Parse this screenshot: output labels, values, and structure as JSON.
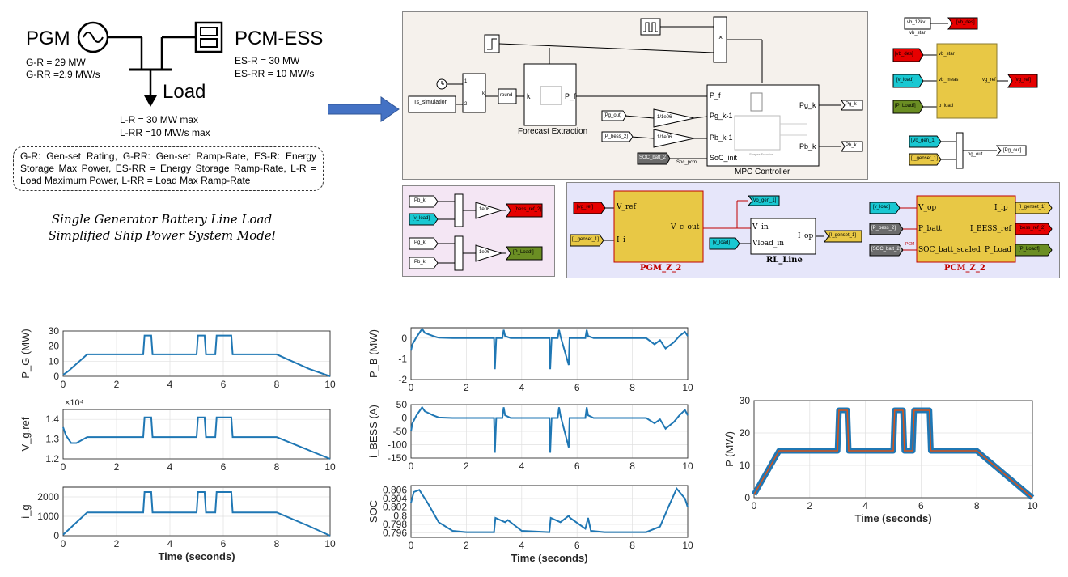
{
  "ship_model": {
    "pgm_label": "PGM",
    "pcm_label": "PCM-ESS",
    "load_label": "Load",
    "pgm_specs": [
      "G-R = 29 MW",
      "G-RR =2.9 MW/s"
    ],
    "pcm_specs": [
      "ES-R = 30 MW",
      "ES-RR = 10 MW/s"
    ],
    "load_specs": [
      "L-R = 30 MW max",
      "L-RR =10 MW/s max"
    ],
    "legend_text": "G-R: Gen-set Rating, G-RR: Gen-set Ramp-Rate, ES-R: Energy Storage Max Power, ES-RR = Energy Storage Ramp-Rate, L-R = Load Maximum Power, L-RR = Load Max Ramp-Rate",
    "caption_line1": "Single Generator Battery Line Load",
    "caption_line2": "Simplified Ship Power System Model"
  },
  "mpc_panel": {
    "ts_block": "Ts_simulation",
    "round_block": "round",
    "k_label": "k",
    "forecast_block": "Forecast Extraction",
    "forecast_port_k": "k",
    "forecast_port_pf": "P_f",
    "mpc_block": "MPC Controller",
    "mpc_in_ports": [
      "P_f",
      "Pg_k-1",
      "Pb_k-1",
      "SoC_init"
    ],
    "mpc_out_ports": [
      "Pg_k",
      "Pb_k"
    ],
    "gain1": "1/1e06",
    "gain2": "1/1e06",
    "from_pg_out": "[Pg_out]",
    "from_p_bess": "[P_bess_2]",
    "from_soc": "SOC_batt_2",
    "soc_signal": "Soc_pcm",
    "goto_pg_k": "Pg_k",
    "goto_pb_k": "Pb_k",
    "mux_ports": [
      "1",
      "2"
    ],
    "mpc_sub": "Shapes Function"
  },
  "right_panel": {
    "vb_12kv": "vb_12kv",
    "vb_star_label": "vb_star",
    "goto_vb_des": "[vb_des]",
    "from_vb_des": "[vb_des]",
    "from_v_load": "[v_load]",
    "from_p_load": "[P_Loadf]",
    "ports_in": [
      "vb_star",
      "vb_meas",
      "p_load"
    ],
    "port_out": "vg_ref",
    "goto_vg_ref": "[vg_ref]",
    "from_vo_gen": "[Vo_gen_1]",
    "from_i_genset": "[I_genset_1]",
    "pg_out_label": "pg_out",
    "goto_pg_out": "[Pg_out]"
  },
  "pink_panel": {
    "from_pb_k": "Pb_k",
    "from_v_load": "[v_load]",
    "gain_a": "1e06",
    "goto_bess_ref": "[bess_ref_2]",
    "from_pg_k": "Pg_k",
    "from_pb_k2": "Pb_k",
    "gain_b": "1e06",
    "goto_p_load": "[P_Loadf]"
  },
  "blue_panel": {
    "from_vg_ref": "[vg_ref]",
    "from_i_genset": "[I_genset_1]",
    "pgm_ports_in": [
      "V_ref",
      "I_i"
    ],
    "pgm_port_out": "V_c_out",
    "pgm_name": "PGM_Z_2",
    "goto_vo_gen": "[Vo_gen_1]",
    "from_v_load_line": "[v_load]",
    "rl_ports_in": [
      "V_in",
      "Vload_in"
    ],
    "rl_port_out": "I_op",
    "rl_name": "RL_Line",
    "goto_i_genset": "[I_genset_1]",
    "from_v_load_pcm": "[v_load]",
    "from_p_bess": "[P_bess_2]",
    "from_soc_batt": "[SOC_batt_2]",
    "pcm_ports_left": [
      "V_op",
      "P_batt",
      "SOC_batt_scaled"
    ],
    "pcm_ports_right": [
      "I_ip",
      "I_BESS_ref",
      "P_Load"
    ],
    "pcm_name": "PCM_Z_2",
    "pcm_tag": "PCM",
    "from_i_genset_r": "[I_genset_1]",
    "from_bess_ref": "[bess_ref_2]",
    "from_p_loadf": "[P_Loadf]"
  },
  "colors": {
    "simulink_yellow": "#e8c845",
    "goto_red": "#e60000",
    "from_cyan": "#19c8d2",
    "from_green": "#6b8e23",
    "from_gray": "#6b6b6b",
    "mpc_panel_bg": "#f5f1ec",
    "pink_panel_bg": "#f4e6f4",
    "blue_panel_bg": "#e6e6fa",
    "arrow_blue": "#4472c4",
    "line_blue": "#1f77b4",
    "line_orange": "#d95319"
  },
  "chart_data": [
    {
      "type": "line",
      "ylabel": "P_G (MW)",
      "ylim": [
        0,
        30
      ],
      "yticks": [
        "0",
        "10",
        "20",
        "30"
      ],
      "xlim": [
        0,
        10
      ],
      "xticks": [
        "0",
        "2",
        "4",
        "6",
        "8",
        "10"
      ],
      "x": [
        0,
        0.2,
        0.9,
        3.0,
        3.05,
        3.3,
        3.35,
        5.0,
        5.05,
        5.3,
        5.35,
        5.7,
        5.75,
        6.3,
        6.35,
        8.0,
        9.2,
        10.0
      ],
      "values": [
        1,
        3.5,
        14.5,
        14.5,
        27,
        27,
        14.5,
        14.5,
        27,
        27,
        14.5,
        14.5,
        27,
        27,
        14.5,
        14.5,
        5,
        0
      ]
    },
    {
      "type": "line",
      "ylabel": "V_g,ref",
      "scale": "×10⁴",
      "ylim": [
        1.2,
        1.45
      ],
      "yticks": [
        "1.2",
        "1.3",
        "1.4"
      ],
      "xlim": [
        0,
        10
      ],
      "xticks": [
        "0",
        "2",
        "4",
        "6",
        "8",
        "10"
      ],
      "x": [
        0,
        0.1,
        0.3,
        0.5,
        0.9,
        3.0,
        3.05,
        3.3,
        3.35,
        5.0,
        5.05,
        5.3,
        5.35,
        5.7,
        5.75,
        6.3,
        6.35,
        8.0,
        10.0
      ],
      "values": [
        1.36,
        1.32,
        1.28,
        1.28,
        1.31,
        1.31,
        1.41,
        1.41,
        1.31,
        1.31,
        1.41,
        1.41,
        1.31,
        1.31,
        1.41,
        1.41,
        1.31,
        1.31,
        1.2
      ]
    },
    {
      "type": "line",
      "ylabel": "i_g",
      "ylim": [
        0,
        2500
      ],
      "yticks": [
        "0",
        "1000",
        "2000"
      ],
      "xlim": [
        0,
        10
      ],
      "xticks": [
        "0",
        "2",
        "4",
        "6",
        "8",
        "10"
      ],
      "xlabel": "Time (seconds)",
      "x": [
        0,
        0.2,
        0.9,
        3.0,
        3.05,
        3.3,
        3.35,
        5.0,
        5.05,
        5.3,
        5.35,
        5.7,
        5.75,
        6.3,
        6.35,
        8.0,
        9.2,
        10.0
      ],
      "values": [
        50,
        300,
        1200,
        1200,
        2250,
        2250,
        1200,
        1200,
        2250,
        2250,
        1200,
        1200,
        2250,
        2250,
        1200,
        1200,
        500,
        0
      ]
    },
    {
      "type": "line",
      "ylabel": "P_B (MW)",
      "ylim": [
        -2,
        0.5
      ],
      "yticks": [
        "-2",
        "-1",
        "0"
      ],
      "xlim": [
        0,
        10
      ],
      "xticks": [
        "0",
        "2",
        "4",
        "6",
        "8",
        "10"
      ],
      "x": [
        0,
        0.05,
        0.2,
        0.4,
        0.5,
        0.6,
        0.8,
        1.0,
        1.5,
        3.0,
        3.03,
        3.08,
        3.3,
        3.35,
        3.4,
        3.6,
        5.0,
        5.03,
        5.08,
        5.3,
        5.35,
        5.4,
        5.7,
        5.73,
        5.78,
        6.3,
        6.35,
        6.4,
        6.6,
        8.5,
        8.8,
        9.0,
        9.2,
        9.5,
        9.7,
        9.9,
        10.0
      ],
      "values": [
        -0.6,
        -0.3,
        0.05,
        0.45,
        0.25,
        0.2,
        0.1,
        0.02,
        0,
        0,
        -1.5,
        0,
        0,
        0.4,
        0.1,
        0,
        0,
        -1.5,
        0,
        0,
        0.4,
        0.1,
        -1.3,
        0,
        0,
        0,
        0.4,
        0.1,
        0,
        0,
        -0.3,
        -0.1,
        -0.5,
        -0.2,
        0.1,
        0.3,
        0.1
      ]
    },
    {
      "type": "line",
      "ylabel": "i_BESS (A)",
      "ylim": [
        -150,
        50
      ],
      "yticks": [
        "-150",
        "-100",
        "-50",
        "0",
        "50"
      ],
      "xlim": [
        0,
        10
      ],
      "xticks": [
        "0",
        "2",
        "4",
        "6",
        "8",
        "10"
      ],
      "x": [
        0,
        0.05,
        0.2,
        0.4,
        0.5,
        0.6,
        0.8,
        1.0,
        1.5,
        3.0,
        3.03,
        3.08,
        3.3,
        3.35,
        3.4,
        3.6,
        5.0,
        5.03,
        5.08,
        5.3,
        5.35,
        5.4,
        5.7,
        5.73,
        5.78,
        6.3,
        6.35,
        6.4,
        6.6,
        8.5,
        8.8,
        9.0,
        9.2,
        9.5,
        9.7,
        9.9,
        10.0
      ],
      "values": [
        -50,
        -20,
        10,
        40,
        25,
        20,
        10,
        2,
        0,
        0,
        -130,
        0,
        0,
        40,
        10,
        0,
        0,
        -130,
        0,
        0,
        40,
        10,
        -110,
        0,
        0,
        0,
        40,
        10,
        0,
        0,
        -20,
        -5,
        -40,
        -15,
        10,
        30,
        10
      ]
    },
    {
      "type": "line",
      "ylabel": "SOC",
      "ylim": [
        0.795,
        0.807
      ],
      "yticks": [
        "0.796",
        "0.798",
        "0.8",
        "0.802",
        "0.804",
        "0.806"
      ],
      "xlim": [
        0,
        10
      ],
      "xticks": [
        "0",
        "2",
        "4",
        "6",
        "8",
        "10"
      ],
      "xlabel": "Time (seconds)",
      "x": [
        0,
        0.1,
        0.3,
        0.6,
        1.0,
        1.5,
        2.0,
        3.0,
        3.05,
        3.4,
        3.5,
        4.0,
        5.0,
        5.05,
        5.4,
        5.7,
        5.75,
        6.3,
        6.4,
        6.5,
        7.0,
        8.5,
        9.0,
        9.3,
        9.6,
        9.9,
        10.0
      ],
      "values": [
        0.803,
        0.8055,
        0.806,
        0.803,
        0.7985,
        0.7965,
        0.7962,
        0.7962,
        0.7995,
        0.7985,
        0.799,
        0.7965,
        0.7962,
        0.7995,
        0.7985,
        0.8,
        0.7995,
        0.797,
        0.7995,
        0.7965,
        0.7962,
        0.7962,
        0.7975,
        0.802,
        0.8063,
        0.804,
        0.802
      ]
    },
    {
      "type": "line",
      "ylabel": "P (MW)",
      "ylim": [
        0,
        30
      ],
      "yticks": [
        "0",
        "10",
        "20",
        "30"
      ],
      "xlim": [
        0,
        10
      ],
      "xticks": [
        "0",
        "2",
        "4",
        "6",
        "8",
        "10"
      ],
      "xlabel": "Time (seconds)",
      "x": [
        0,
        0.9,
        3.0,
        3.05,
        3.35,
        3.4,
        5.0,
        5.05,
        5.35,
        5.4,
        5.7,
        5.75,
        6.3,
        6.35,
        8.0,
        10.0
      ],
      "values": [
        1,
        14.5,
        14.5,
        27,
        27,
        14.5,
        14.5,
        27,
        27,
        14.5,
        14.5,
        27,
        27,
        14.5,
        14.5,
        0
      ]
    }
  ]
}
